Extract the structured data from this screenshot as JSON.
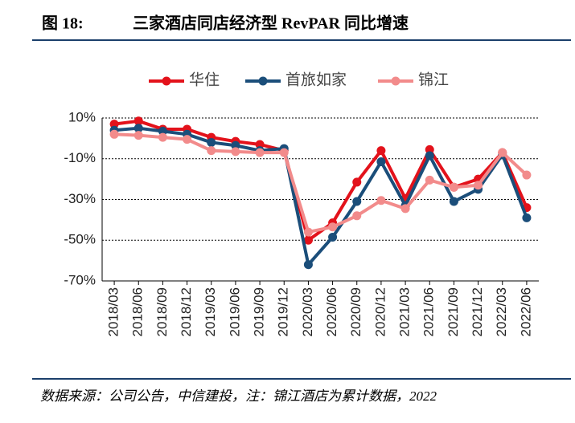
{
  "header": {
    "figure": "图 18:",
    "title": "三家酒店同店经济型 RevPAR 同比增速"
  },
  "chart_data": {
    "type": "line",
    "categories": [
      "2018/03",
      "2018/06",
      "2018/09",
      "2018/12",
      "2019/03",
      "2019/06",
      "2019/09",
      "2019/12",
      "2020/03",
      "2020/06",
      "2020/09",
      "2020/12",
      "2021/03",
      "2021/06",
      "2021/09",
      "2021/12",
      "2022/03",
      "2022/06"
    ],
    "series": [
      {
        "name": "华住",
        "color": "#e3121b",
        "values": [
          7,
          8.5,
          4.5,
          4.5,
          0.5,
          -1.5,
          -3,
          -6,
          -50,
          -41.5,
          -21.5,
          -6,
          -29.5,
          -5.5,
          -24,
          -20,
          -7,
          -34
        ]
      },
      {
        "name": "首旅如家",
        "color": "#1b4e7a",
        "values": [
          4,
          5,
          3.5,
          2,
          -2,
          -3.5,
          -6,
          -5,
          -62,
          -48.5,
          -31,
          -11.5,
          -33,
          -8.5,
          -31,
          -25,
          -8,
          -39
        ]
      },
      {
        "name": "锦江",
        "color": "#f28b8b",
        "values": [
          2,
          1.5,
          0.5,
          -0.5,
          -6,
          -6.5,
          -7,
          -7,
          -46,
          -43.5,
          -38,
          -30.5,
          -34.5,
          -20.5,
          -24,
          -23,
          -7,
          -18
        ]
      }
    ],
    "ylim": [
      -70,
      10
    ],
    "yticks": [
      {
        "value": 10,
        "label": "10%"
      },
      {
        "value": -10,
        "label": "-10%"
      },
      {
        "value": -30,
        "label": "-30%"
      },
      {
        "value": -50,
        "label": "-50%"
      },
      {
        "value": -70,
        "label": "-70%"
      }
    ],
    "grid": true,
    "legend": "top"
  },
  "footer": {
    "source": "数据来源：公司公告，中信建投，注：锦江酒店为累计数据，2022"
  }
}
